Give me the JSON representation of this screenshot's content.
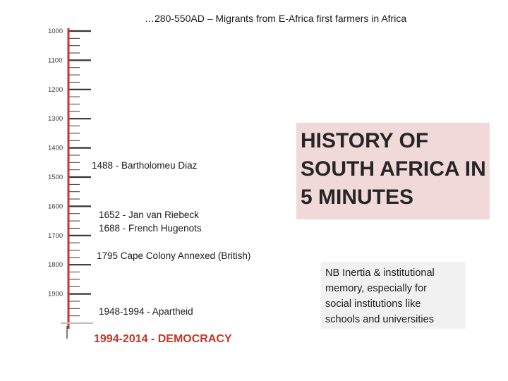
{
  "top_note": "…280-550AD – Migrants from E-Africa first farmers in Africa",
  "timeline": {
    "ticks": [
      "1000",
      "1100",
      "1200",
      "1300",
      "1400",
      "1500",
      "1600",
      "1700",
      "1800",
      "1900"
    ],
    "line_color": "#d32f2f",
    "tick_color": "#333333"
  },
  "events": [
    "1488 - Bartholomeu Diaz",
    "1652 - Jan van Riebeck",
    "1688 - French Hugenots",
    "1795 Cape Colony Annexed (British)",
    "1948-1994  - Apartheid",
    "1994-2014 - DEMOCRACY"
  ],
  "title_box": {
    "lines": [
      "HISTORY OF",
      "SOUTH AFRICA IN",
      "5 MINUTES"
    ],
    "background": "#f2d9d9"
  },
  "nb_note": {
    "lines": [
      "NB Inertia & institutional",
      "memory, especially for",
      "social institutions like",
      "schools and universities"
    ],
    "background": "#f1f1f1"
  },
  "accent_red": "#c0392b"
}
